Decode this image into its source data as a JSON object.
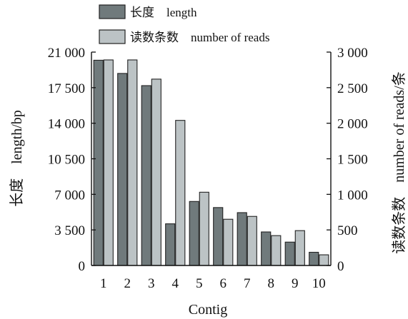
{
  "chart_data": {
    "type": "bar",
    "xlabel": "Contig",
    "ylabel_left": "长度　length/bp",
    "ylabel_right": "读数条数　number of reads/条",
    "categories": [
      "1",
      "2",
      "3",
      "4",
      "5",
      "6",
      "7",
      "8",
      "9",
      "10"
    ],
    "series": [
      {
        "name": "长度　length",
        "axis": "left",
        "color": "#707a7c",
        "values": [
          20200,
          18900,
          17700,
          4100,
          6300,
          5700,
          5200,
          3300,
          2300,
          1300
        ]
      },
      {
        "name": "读数条数　number of reads",
        "axis": "right",
        "color": "#bcc3c5",
        "values": [
          2890,
          2890,
          2620,
          2040,
          1030,
          650,
          690,
          420,
          490,
          150
        ]
      }
    ],
    "ylim_left": [
      0,
      21000
    ],
    "ylim_right": [
      0,
      3000
    ],
    "yticks_left": [
      "0",
      "3 500",
      "7 000",
      "10 500",
      "14 000",
      "17 500",
      "21 000"
    ],
    "yticks_right": [
      "0",
      "500",
      "1 000",
      "1 500",
      "2 000",
      "2 500",
      "3 000"
    ],
    "legend_position": "top",
    "grid": false
  }
}
